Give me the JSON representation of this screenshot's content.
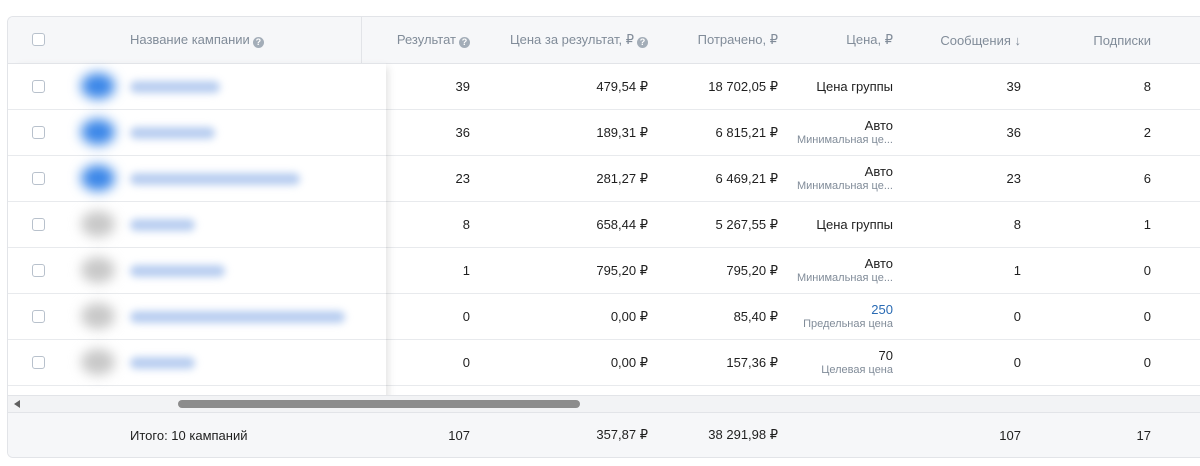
{
  "table": {
    "headers": {
      "campaign_name": "Название кампании",
      "result": "Результат",
      "cost_per_result": "Цена за результат, ₽",
      "spent": "Потрачено, ₽",
      "price": "Цена, ₽",
      "messages": "Сообщения ↓",
      "subscriptions": "Подписки"
    },
    "rows": [
      {
        "result": "39",
        "cost_per_result": "479,54 ₽",
        "spent": "18 702,05 ₽",
        "price_main": "Цена группы",
        "price_sub": "",
        "messages": "39",
        "subscriptions": "8",
        "avatar_color": "#3a86e8"
      },
      {
        "result": "36",
        "cost_per_result": "189,31 ₽",
        "spent": "6 815,21 ₽",
        "price_main": "Авто",
        "price_sub": "Минимальная це...",
        "messages": "36",
        "subscriptions": "2",
        "avatar_color": "#3a86e8"
      },
      {
        "result": "23",
        "cost_per_result": "281,27 ₽",
        "spent": "6 469,21 ₽",
        "price_main": "Авто",
        "price_sub": "Минимальная це...",
        "messages": "23",
        "subscriptions": "6",
        "avatar_color": "#3a86e8"
      },
      {
        "result": "8",
        "cost_per_result": "658,44 ₽",
        "spent": "5 267,55 ₽",
        "price_main": "Цена группы",
        "price_sub": "",
        "messages": "8",
        "subscriptions": "1",
        "avatar_color": "#c8c8c8"
      },
      {
        "result": "1",
        "cost_per_result": "795,20 ₽",
        "spent": "795,20 ₽",
        "price_main": "Авто",
        "price_sub": "Минимальная це...",
        "messages": "1",
        "subscriptions": "0",
        "avatar_color": "#c8c8c8"
      },
      {
        "result": "0",
        "cost_per_result": "0,00 ₽",
        "spent": "85,40 ₽",
        "price_main": "250",
        "price_sub": "Предельная цена",
        "messages": "0",
        "subscriptions": "0",
        "avatar_color": "#c8c8c8"
      },
      {
        "result": "0",
        "cost_per_result": "0,00 ₽",
        "spent": "157,36 ₽",
        "price_main": "70",
        "price_sub": "Целевая цена",
        "messages": "0",
        "subscriptions": "0",
        "avatar_color": "#c8c8c8"
      }
    ],
    "footer": {
      "label": "Итого: 10 кампаний",
      "result": "107",
      "cost_per_result": "357,87 ₽",
      "spent": "38 291,98 ₽",
      "messages": "107",
      "subscriptions": "17"
    }
  },
  "icons": {
    "help": "question-circle-icon",
    "sort": "sort-desc-arrow",
    "scroll_left": "triangle-left-icon"
  },
  "colors": {
    "link": "#2a6bb4",
    "header_bg": "#f6f7f9",
    "muted_text": "#818c99"
  }
}
